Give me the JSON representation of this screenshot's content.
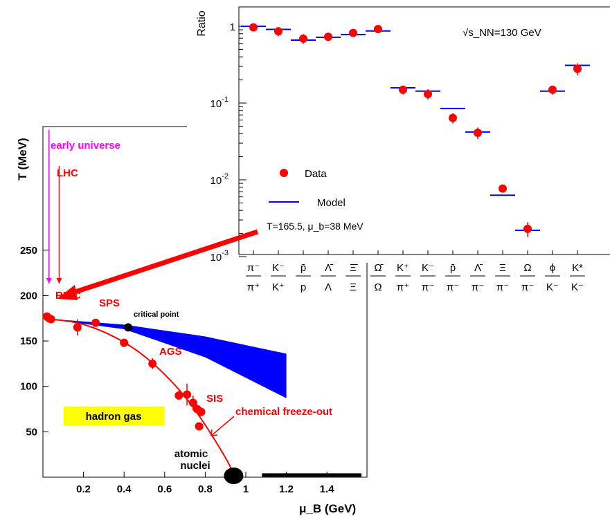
{
  "chart_data": [
    {
      "type": "scatter",
      "xlabel": "μ_B (GeV)",
      "ylabel": "T (MeV)",
      "xlim": [
        0,
        1.6
      ],
      "ylim": [
        0,
        285
      ],
      "x_ticks": [
        0.2,
        0.4,
        0.6,
        0.8,
        1,
        1.2,
        1.4
      ],
      "x_tick_labels": [
        "0.2",
        "0.4",
        "0.6",
        "0.8",
        "1",
        "1.2",
        "1.4"
      ],
      "y_ticks": [
        50,
        100,
        150,
        200,
        250
      ],
      "y_tick_labels": [
        "50",
        "100",
        "150",
        "200",
        "250"
      ],
      "series": [
        {
          "name": "chemical freeze-out",
          "color": "#ff0000",
          "points": [
            {
              "x": 0.02,
              "y": 177,
              "err": 3
            },
            {
              "x": 0.03,
              "y": 175,
              "err": 3
            },
            {
              "x": 0.04,
              "y": 174,
              "err": 3
            },
            {
              "x": 0.17,
              "y": 165,
              "err": 9
            },
            {
              "x": 0.26,
              "y": 170,
              "err": 3
            },
            {
              "x": 0.4,
              "y": 148,
              "err": 3
            },
            {
              "x": 0.54,
              "y": 125,
              "err": 6
            },
            {
              "x": 0.67,
              "y": 90,
              "err": 5
            },
            {
              "x": 0.71,
              "y": 91,
              "err": 12
            },
            {
              "x": 0.74,
              "y": 82,
              "err": 8
            },
            {
              "x": 0.76,
              "y": 75,
              "err": 5
            },
            {
              "x": 0.78,
              "y": 72,
              "err": 5
            },
            {
              "x": 0.77,
              "y": 56,
              "err": 2
            }
          ],
          "curve": [
            [
              0,
              175
            ],
            [
              0.2,
              170
            ],
            [
              0.4,
              150
            ],
            [
              0.55,
              125
            ],
            [
              0.7,
              90
            ],
            [
              0.8,
              58
            ],
            [
              0.9,
              22
            ],
            [
              0.95,
              0
            ]
          ]
        }
      ],
      "phase_boundary_band": {
        "color": "#0000ff",
        "upper": [
          [
            0,
            175
          ],
          [
            0.4,
            168
          ],
          [
            0.8,
            155
          ],
          [
            1.2,
            136
          ]
        ],
        "lower": [
          [
            0,
            175
          ],
          [
            0.4,
            163
          ],
          [
            0.8,
            132
          ],
          [
            1.2,
            87
          ]
        ]
      },
      "critical_point": {
        "x": 0.42,
        "y": 165
      },
      "atomic_nuclei_point": {
        "x": 0.94,
        "y": 0
      },
      "neutron_star_band": {
        "x_start": 1.08,
        "x_end": 1.57,
        "y": 2
      },
      "trajectories": [
        {
          "label": "early universe",
          "color": "#ff00ff",
          "x": 0.03
        },
        {
          "label": "LHC",
          "color": "#ff0000",
          "x": 0.08
        }
      ],
      "annotations": [
        {
          "text": "RHIC",
          "color": "#ff0000"
        },
        {
          "text": "SPS",
          "color": "#ff0000"
        },
        {
          "text": "critical point",
          "color": "#000000"
        },
        {
          "text": "AGS",
          "color": "#ff0000"
        },
        {
          "text": "SIS",
          "color": "#ff0000"
        },
        {
          "text": "chemical freeze-out",
          "color": "#ff0000"
        },
        {
          "text": "hadron gas",
          "color": "#000000",
          "background": "#ffff00"
        },
        {
          "text": "atomic",
          "color": "#000000"
        },
        {
          "text": "nuclei",
          "color": "#000000"
        }
      ]
    },
    {
      "type": "scatter",
      "ylabel": "Ratio",
      "yscale": "log",
      "ylim": [
        0.001,
        1.6
      ],
      "y_ticks": [
        1,
        0.1,
        0.01,
        0.001
      ],
      "annotation": "√s_NN=130 GeV",
      "params_label": "T=165.5, μ_b=38 MeV",
      "legend": [
        {
          "label": "Data",
          "marker": "circle",
          "color": "#ff0000"
        },
        {
          "label": "Model",
          "marker": "line",
          "color": "#0000ff"
        }
      ],
      "categories": [
        {
          "num": "π⁻",
          "den": "π⁺"
        },
        {
          "num": "K⁻",
          "den": "K⁺"
        },
        {
          "num": "p̄",
          "den": "p"
        },
        {
          "num": "Λ̄",
          "den": "Λ"
        },
        {
          "num": "Ξ̄",
          "den": "Ξ"
        },
        {
          "num": "Ω̄",
          "den": "Ω"
        },
        {
          "num": "K⁺",
          "den": "π⁺"
        },
        {
          "num": "K⁻",
          "den": "π⁻"
        },
        {
          "num": "p̄",
          "den": "π⁻"
        },
        {
          "num": "Λ̄",
          "den": "π⁻"
        },
        {
          "num": "Ξ",
          "den": "π⁻"
        },
        {
          "num": "Ω",
          "den": "π⁻"
        },
        {
          "num": "ϕ",
          "den": "K⁻"
        },
        {
          "num": "K*",
          "den": "K⁻"
        }
      ],
      "series": [
        {
          "name": "Data",
          "values": [
            0.97,
            0.86,
            0.69,
            0.73,
            0.82,
            0.92,
            0.149,
            0.131,
            0.064,
            0.041,
            0.0077,
            0.0023,
            0.149,
            0.28
          ],
          "errors": [
            0.1,
            0.12,
            0.1,
            0.08,
            0.07,
            0.07,
            0.02,
            0.02,
            0.01,
            0.007,
            0.0008,
            0.0005,
            0.02,
            0.05
          ]
        },
        {
          "name": "Model",
          "values": [
            1.0,
            0.91,
            0.66,
            0.72,
            0.78,
            0.87,
            0.158,
            0.143,
            0.085,
            0.042,
            0.0063,
            0.0022,
            0.143,
            0.31
          ]
        }
      ]
    }
  ]
}
